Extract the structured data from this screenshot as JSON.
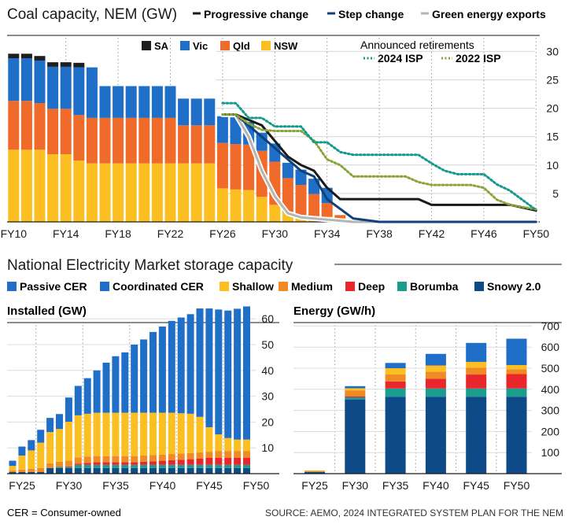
{
  "chart_data": [
    {
      "type": "bar",
      "title": "Coal capacity, NEM (GW)",
      "x_tick_labels": [
        "FY10",
        "FY14",
        "FY18",
        "FY22",
        "FY26",
        "FY30",
        "FY34",
        "FY38",
        "FY42",
        "FY46",
        "FY50"
      ],
      "y_ticks": [
        5,
        10,
        15,
        20,
        25,
        30
      ],
      "ylim": [
        0,
        32
      ],
      "legend_stack": [
        "SA",
        "Vic",
        "Qld",
        "NSW"
      ],
      "legend_lines": [
        "Progressive change",
        "Step change",
        "Green energy exports"
      ],
      "annotation": "Announced retirements",
      "legend_dotted": [
        "2024 ISP",
        "2022 ISP"
      ],
      "colors": {
        "SA": "#1f1f1f",
        "Vic": "#1f6fc9",
        "Qld": "#f06a2a",
        "NSW": "#fcbf22",
        "Progressive change": "#1a1a1a",
        "Step change": "#10427a",
        "Green energy exports": "#b5b5b5",
        "2024 ISP": "#13998d",
        "2022 ISP": "#8aa33a"
      },
      "bar_x": [
        2010,
        2011,
        2012,
        2013,
        2014,
        2015,
        2016,
        2017,
        2018,
        2019,
        2020,
        2021,
        2022,
        2023,
        2024,
        2025,
        2026,
        2027,
        2028,
        2029,
        2030,
        2031,
        2032,
        2033,
        2034,
        2035,
        2036
      ],
      "series": [
        {
          "name": "NSW",
          "values": [
            12.7,
            12.7,
            12.7,
            11.9,
            11.9,
            10.8,
            10.3,
            10.3,
            10.3,
            10.3,
            10.3,
            10.3,
            10.3,
            10.3,
            10.3,
            10.3,
            5.9,
            5.7,
            5.6,
            4.4,
            3.0,
            1.8,
            1.2,
            1.0,
            0.9,
            0.6,
            0
          ]
        },
        {
          "name": "Qld",
          "values": [
            8.6,
            8.6,
            8.2,
            8.0,
            8.0,
            8.0,
            8.0,
            8.0,
            8.0,
            8.0,
            8.0,
            8.0,
            8.0,
            6.7,
            6.7,
            6.7,
            8.0,
            8.0,
            8.0,
            8.1,
            7.6,
            5.9,
            5.3,
            3.9,
            2.4,
            0.6,
            0
          ]
        },
        {
          "name": "Vic",
          "values": [
            7.5,
            7.5,
            7.5,
            7.4,
            7.4,
            8.4,
            8.9,
            5.6,
            5.6,
            5.6,
            5.6,
            5.6,
            5.6,
            4.7,
            4.7,
            4.7,
            4.7,
            4.7,
            4.0,
            3.2,
            3.2,
            2.7,
            2.7,
            2.7,
            2.7,
            0,
            0
          ]
        },
        {
          "name": "SA",
          "values": [
            0.8,
            0.8,
            0.8,
            0.8,
            0.8,
            0.8,
            0,
            0,
            0,
            0,
            0,
            0,
            0,
            0,
            0,
            0,
            0,
            0,
            0,
            0,
            0,
            0,
            0,
            0,
            0,
            0,
            0
          ]
        }
      ],
      "lines": [
        {
          "name": "Progressive change",
          "x": [
            2026,
            2027,
            2029,
            2031,
            2032,
            2033,
            2034,
            2035,
            2041,
            2042,
            2048,
            2050
          ],
          "y": [
            18.9,
            18.9,
            17,
            11.5,
            10,
            9,
            6,
            4,
            4,
            3,
            3,
            2
          ]
        },
        {
          "name": "Step change",
          "x": [
            2026,
            2027,
            2029,
            2031,
            2032,
            2033,
            2034,
            2036,
            2038,
            2050
          ],
          "y": [
            18.9,
            18.9,
            15,
            11,
            9,
            8,
            4,
            0.6,
            0,
            0
          ]
        },
        {
          "name": "Green energy exports",
          "x": [
            2026,
            2027,
            2028,
            2029,
            2030,
            2031,
            2032,
            2034,
            2036,
            2050
          ],
          "y": [
            18.9,
            18.9,
            15,
            9,
            4.5,
            1.5,
            0.8,
            0.4,
            0,
            0
          ]
        },
        {
          "name": "2024 ISP",
          "x": [
            2026,
            2027,
            2028,
            2029,
            2030,
            2032,
            2033,
            2034,
            2035,
            2036,
            2041,
            2042,
            2043,
            2044,
            2046,
            2047,
            2048,
            2050
          ],
          "y": [
            20.9,
            20.9,
            18.3,
            18.3,
            16.8,
            16.8,
            14,
            14,
            12.3,
            11.8,
            11.8,
            10.3,
            9,
            8.4,
            8.4,
            6.6,
            5.5,
            2.1
          ]
        },
        {
          "name": "2022 ISP",
          "x": [
            2026,
            2027,
            2028,
            2029,
            2030,
            2032,
            2033,
            2034,
            2035,
            2036,
            2040,
            2041,
            2042,
            2045,
            2046,
            2047,
            2048,
            2050
          ],
          "y": [
            18.9,
            18.9,
            17.3,
            16.2,
            16,
            16,
            14.3,
            11,
            10,
            8,
            8,
            7,
            6.5,
            6.5,
            6,
            3.9,
            3,
            2.2
          ]
        }
      ]
    },
    {
      "type": "bar",
      "title": "National Electricity Market storage capacity",
      "legend": [
        "Passive CER",
        "Coordinated CER",
        "Shallow",
        "Medium",
        "Deep",
        "Borumba",
        "Snowy 2.0"
      ],
      "colors": {
        "Passive CER": "#1f6fc9",
        "Coordinated CER": "#1f6fc9",
        "Shallow": "#fcbf22",
        "Medium": "#f08a24",
        "Deep": "#e8262c",
        "Borumba": "#1a9c8f",
        "Snowy 2.0": "#0d4a87"
      },
      "footnote": "CER = Consumer-owned",
      "source": "SOURCE: AEMO, 2024 INTEGRATED SYSTEM PLAN FOR THE NEM"
    },
    {
      "type": "bar",
      "title": "Installed (GW)",
      "x_tick_labels": [
        "FY25",
        "FY30",
        "FY35",
        "FY40",
        "FY45",
        "FY50"
      ],
      "y_ticks": [
        10,
        20,
        30,
        40,
        50,
        60
      ],
      "ylim": [
        0,
        62
      ],
      "bar_x": [
        2025,
        2026,
        2027,
        2028,
        2029,
        2030,
        2031,
        2032,
        2033,
        2034,
        2035,
        2036,
        2037,
        2038,
        2039,
        2040,
        2041,
        2042,
        2043,
        2044,
        2045,
        2046,
        2047,
        2048,
        2049,
        2050
      ],
      "series": [
        {
          "name": "Snowy 2.0",
          "values": [
            0.6,
            0.6,
            0.6,
            0.6,
            2.2,
            2.2,
            2.2,
            2.2,
            2.2,
            2.2,
            2.2,
            2.2,
            2.2,
            2.2,
            2.2,
            2.2,
            2.2,
            2.2,
            2.2,
            2.2,
            2.2,
            2.2,
            2.2,
            2.2,
            2.2,
            2.2
          ]
        },
        {
          "name": "Borumba",
          "values": [
            0,
            0,
            0,
            0,
            0,
            0.4,
            0.4,
            1.2,
            1.2,
            1.2,
            1.2,
            1.2,
            1.2,
            1.2,
            1.2,
            1.2,
            1.2,
            1.2,
            1.2,
            1.2,
            1.2,
            1.2,
            1.2,
            1.2,
            1.2,
            1.2
          ]
        },
        {
          "name": "Deep",
          "values": [
            0,
            0,
            0,
            0,
            0,
            0,
            0.2,
            0.5,
            0.8,
            1.0,
            1.0,
            1.0,
            1.0,
            1.0,
            1.2,
            1.4,
            1.6,
            1.8,
            2.0,
            2.2,
            2.4,
            2.7,
            2.8,
            2.8,
            2.8,
            2.8
          ]
        },
        {
          "name": "Medium",
          "values": [
            0.6,
            1.0,
            1.3,
            1.6,
            1.8,
            2.0,
            2.2,
            2.4,
            2.4,
            2.4,
            2.4,
            2.4,
            2.4,
            2.4,
            2.4,
            2.4,
            2.4,
            2.4,
            2.4,
            2.4,
            2.4,
            2.4,
            2.6,
            2.6,
            2.6,
            2.6
          ]
        },
        {
          "name": "Shallow",
          "values": [
            1.8,
            5.4,
            7.1,
            9.8,
            12.1,
            12.7,
            15.1,
            16.3,
            16.6,
            16.8,
            16.8,
            16.8,
            16.8,
            16.8,
            16.6,
            16.4,
            16.2,
            16.0,
            15.6,
            15.2,
            13.8,
            9.5,
            6.4,
            5.0,
            4.4,
            4.4
          ]
        },
        {
          "name": "Coordinated CER",
          "values": [
            2.0,
            3.5,
            4.0,
            5.0,
            5.5,
            5.8,
            9.4,
            11.4,
            13.8,
            16.4,
            19.4,
            21.9,
            23.4,
            26.4,
            28.4,
            31.3,
            33.4,
            35.6,
            37.1,
            38.6,
            42.0,
            46.0,
            48.4,
            49.4,
            50.7,
            51.6
          ]
        }
      ]
    },
    {
      "type": "bar",
      "title": "Energy (GW/h)",
      "x_tick_labels": [
        "FY25",
        "FY30",
        "FY35",
        "FY40",
        "FY45",
        "FY50"
      ],
      "y_ticks": [
        100,
        200,
        300,
        400,
        500,
        600,
        700
      ],
      "ylim": [
        0,
        720
      ],
      "categories": [
        "FY25",
        "FY30",
        "FY35",
        "FY40",
        "FY45",
        "FY50"
      ],
      "series": [
        {
          "name": "Snowy 2.0",
          "values": [
            8,
            352,
            364,
            364,
            364,
            364
          ]
        },
        {
          "name": "Borumba",
          "values": [
            0,
            10,
            40,
            40,
            40,
            40
          ]
        },
        {
          "name": "Deep",
          "values": [
            0,
            5,
            33,
            46,
            66,
            68
          ]
        },
        {
          "name": "Medium",
          "values": [
            5,
            28,
            33,
            33,
            33,
            23
          ]
        },
        {
          "name": "Shallow",
          "values": [
            2,
            10,
            30,
            30,
            27,
            20
          ]
        },
        {
          "name": "Coordinated CER",
          "values": [
            0,
            10,
            25,
            55,
            90,
            125
          ]
        }
      ]
    }
  ]
}
